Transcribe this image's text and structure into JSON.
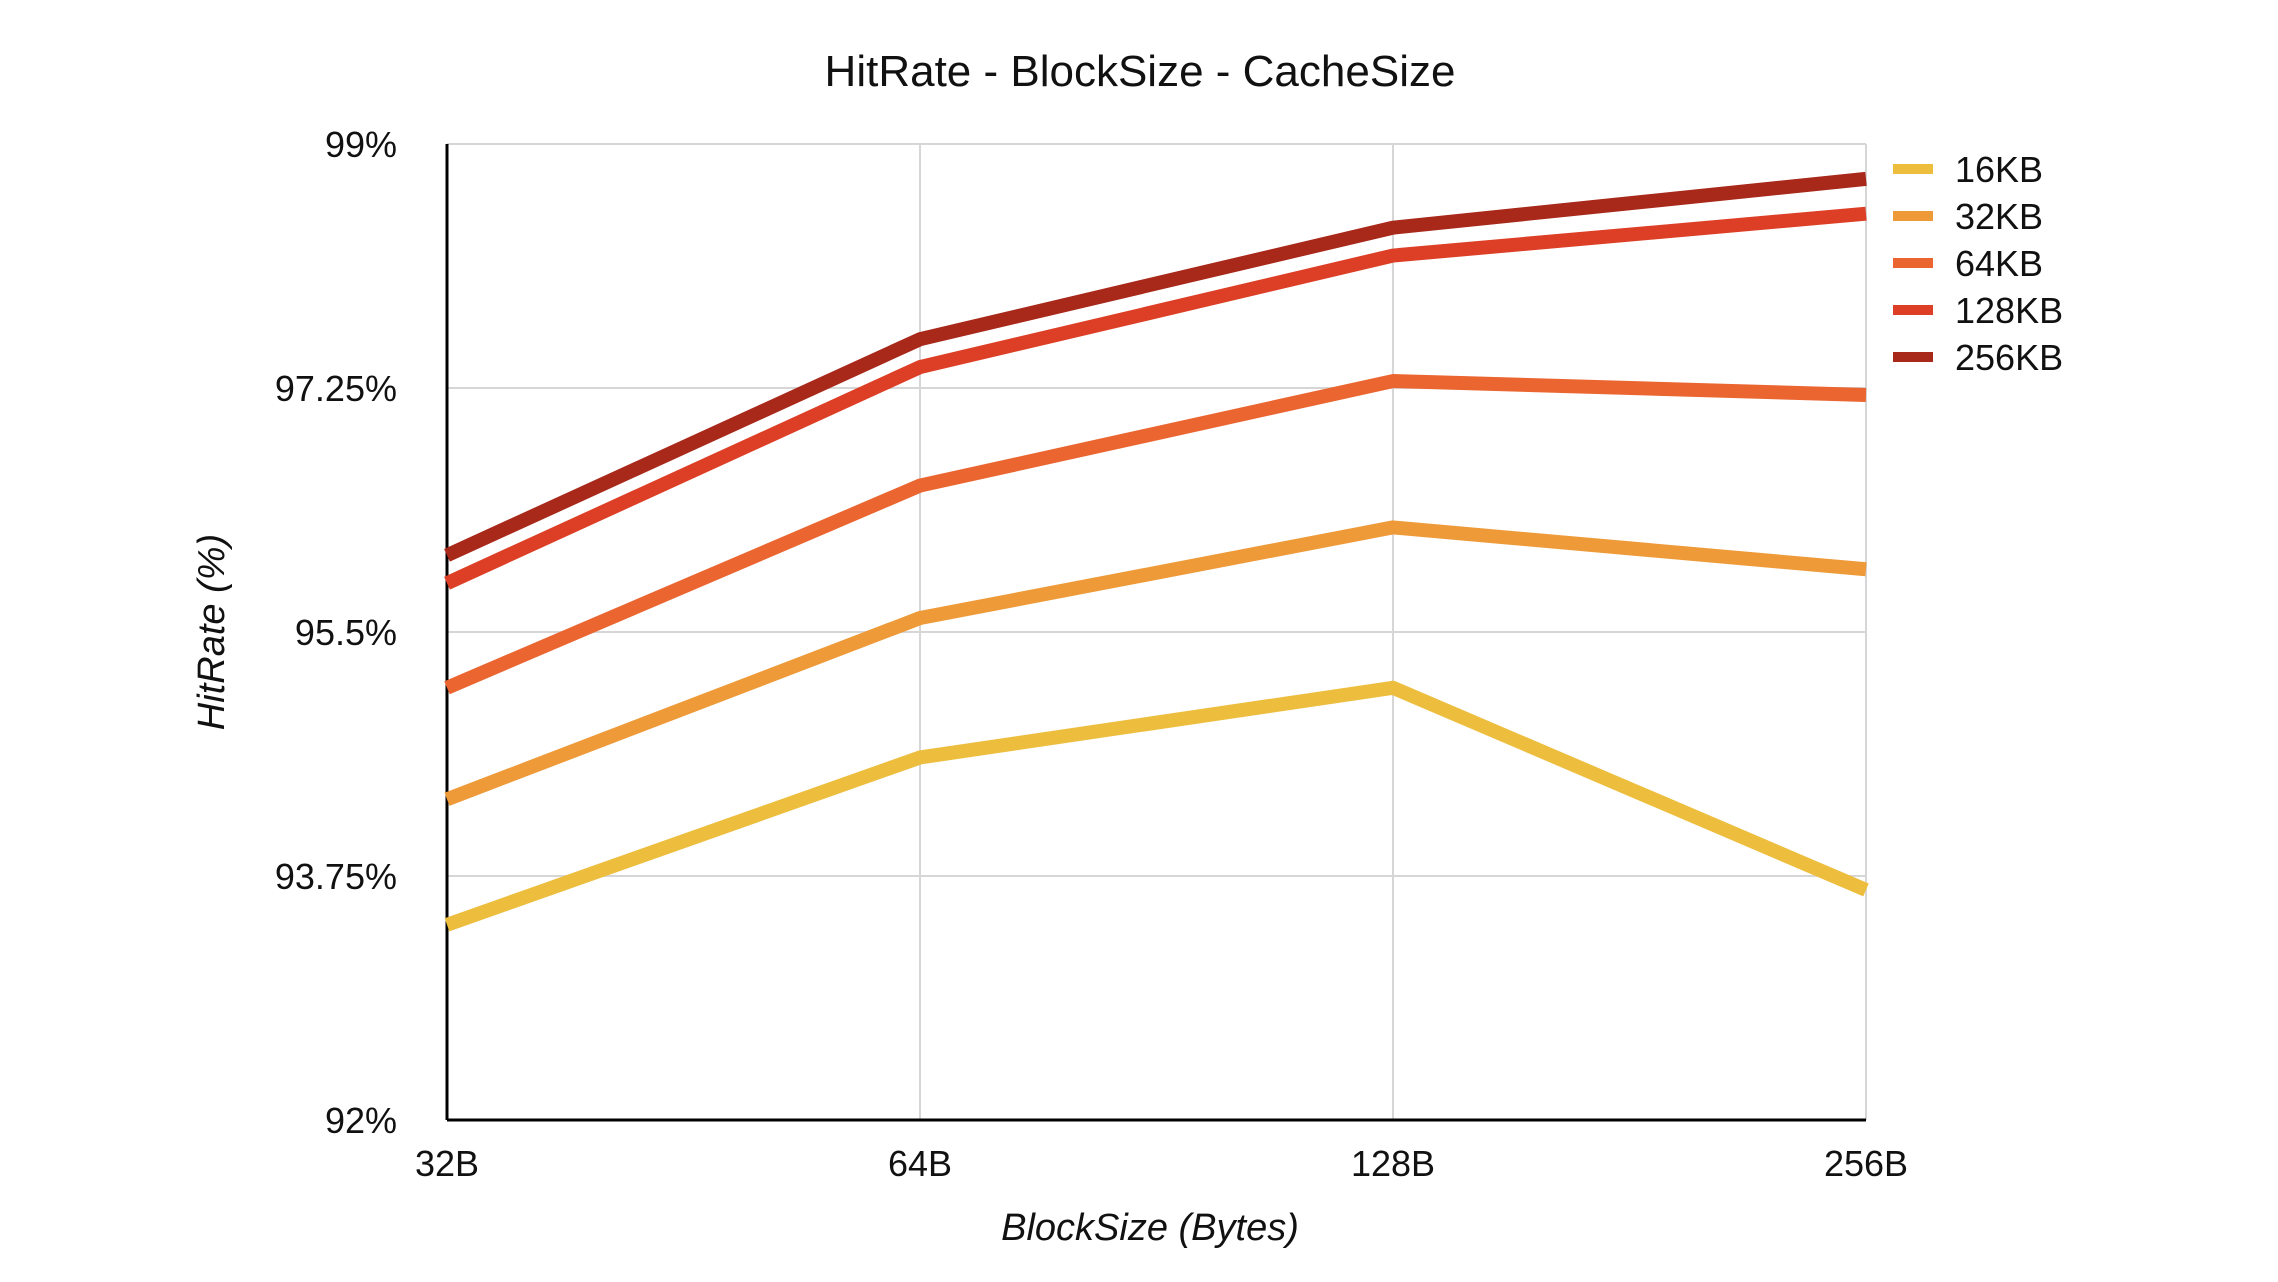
{
  "chart_data": {
    "type": "line",
    "title": "HitRate - BlockSize - CacheSize",
    "xlabel": "BlockSize (Bytes)",
    "ylabel": "HitRate (%)",
    "categories": [
      "32B",
      "64B",
      "128B",
      "256B"
    ],
    "ylim": [
      92,
      99
    ],
    "yticks": [
      92,
      93.75,
      95.5,
      97.25,
      99
    ],
    "ytick_labels": [
      "92%",
      "93.75%",
      "95.5%",
      "97.25%",
      "99%"
    ],
    "grid": true,
    "legend_position": "top-right",
    "series": [
      {
        "name": "16KB",
        "color": "#EDBE3E",
        "values": [
          93.4,
          94.6,
          95.1,
          93.65
        ]
      },
      {
        "name": "32KB",
        "color": "#EE9A38",
        "values": [
          94.3,
          95.6,
          96.25,
          95.95
        ]
      },
      {
        "name": "64KB",
        "color": "#EA6530",
        "values": [
          95.1,
          96.55,
          97.3,
          97.2
        ]
      },
      {
        "name": "128KB",
        "color": "#DD3F26",
        "values": [
          95.85,
          97.4,
          98.2,
          98.5
        ]
      },
      {
        "name": "256KB",
        "color": "#A8281A",
        "values": [
          96.05,
          97.6,
          98.4,
          98.75
        ]
      }
    ]
  }
}
